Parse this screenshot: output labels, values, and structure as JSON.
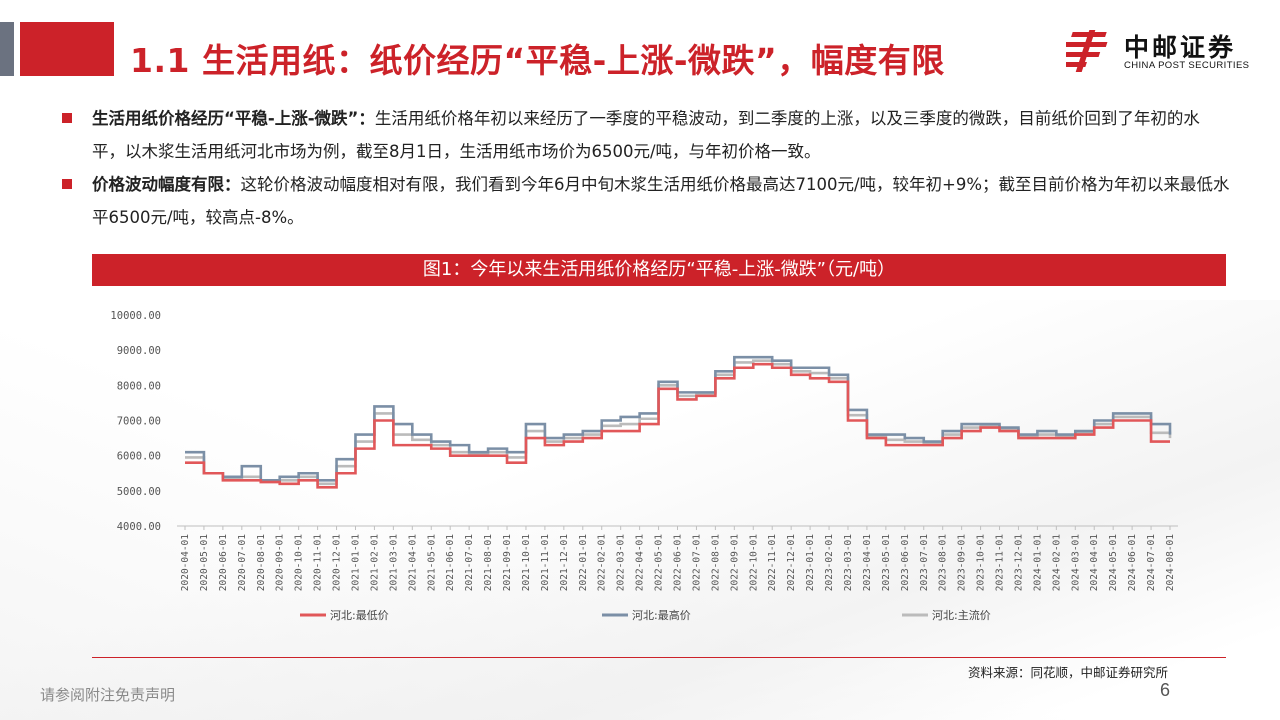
{
  "header": {
    "title": "1.1 生活用纸：纸价经历“平稳-上涨-微跌”，幅度有限",
    "logo_cn": "中邮证券",
    "logo_en": "CHINA POST SECURITIES",
    "accent": "#cc2229"
  },
  "bullets": [
    {
      "bold": "生活用纸价格经历“平稳-上涨-微跌”：",
      "text": "生活用纸价格年初以来经历了一季度的平稳波动，到二季度的上涨，以及三季度的微跌，目前纸价回到了年初的水平，以木浆生活用纸河北市场为例，截至8月1日，生活用纸市场价为6500元/吨，与年初价格一致。"
    },
    {
      "bold": "价格波动幅度有限：",
      "text": "这轮价格波动幅度相对有限，我们看到今年6月中旬木浆生活用纸价格最高达7100元/吨，较年初+9%；截至目前价格为年初以来最低水平6500元/吨，较高点-8%。"
    }
  ],
  "figure": {
    "caption": "图1：今年以来生活用纸价格经历“平稳-上涨-微跌”（元/吨）"
  },
  "chart_data": {
    "type": "line",
    "ylim": [
      4000,
      10000
    ],
    "yticks": [
      "10000.00",
      "9000.00",
      "8000.00",
      "7000.00",
      "6000.00",
      "5000.00",
      "4000.00"
    ],
    "categories": [
      "2020-04-01",
      "2020-05-01",
      "2020-06-01",
      "2020-07-01",
      "2020-08-01",
      "2020-09-01",
      "2020-10-01",
      "2020-11-01",
      "2020-12-01",
      "2021-01-01",
      "2021-02-01",
      "2021-03-01",
      "2021-04-01",
      "2021-05-01",
      "2021-06-01",
      "2021-07-01",
      "2021-08-01",
      "2021-09-01",
      "2021-10-01",
      "2021-11-01",
      "2021-12-01",
      "2022-01-01",
      "2022-02-01",
      "2022-03-01",
      "2022-04-01",
      "2022-05-01",
      "2022-06-01",
      "2022-07-01",
      "2022-08-01",
      "2022-09-01",
      "2022-10-01",
      "2022-11-01",
      "2022-12-01",
      "2023-01-01",
      "2023-02-01",
      "2023-03-01",
      "2023-04-01",
      "2023-05-01",
      "2023-06-01",
      "2023-07-01",
      "2023-08-01",
      "2023-09-01",
      "2023-10-01",
      "2023-11-01",
      "2023-12-01",
      "2024-01-01",
      "2024-02-01",
      "2024-03-01",
      "2024-04-01",
      "2024-05-01",
      "2024-06-01",
      "2024-07-01",
      "2024-08-01"
    ],
    "legend_position": "bottom",
    "series": [
      {
        "name": "河北:最低价",
        "color": "#e15759",
        "values": [
          5800,
          5500,
          5300,
          5300,
          5250,
          5200,
          5300,
          5100,
          5500,
          6200,
          7000,
          6300,
          6300,
          6200,
          6000,
          6000,
          6000,
          5800,
          6500,
          6300,
          6400,
          6500,
          6700,
          6700,
          6900,
          7900,
          7600,
          7700,
          8200,
          8500,
          8600,
          8500,
          8300,
          8200,
          8100,
          7000,
          6500,
          6300,
          6300,
          6300,
          6500,
          6700,
          6800,
          6700,
          6500,
          6500,
          6500,
          6600,
          6800,
          7000,
          7000,
          6400,
          6400
        ]
      },
      {
        "name": "河北:最高价",
        "color": "#7b8fa6",
        "values": [
          6100,
          5500,
          5400,
          5700,
          5300,
          5400,
          5500,
          5300,
          5900,
          6600,
          7400,
          6900,
          6600,
          6400,
          6300,
          6100,
          6200,
          6100,
          6900,
          6500,
          6600,
          6700,
          7000,
          7100,
          7200,
          8100,
          7800,
          7800,
          8400,
          8800,
          8800,
          8700,
          8500,
          8500,
          8300,
          7300,
          6600,
          6600,
          6500,
          6400,
          6700,
          6900,
          6900,
          6800,
          6600,
          6700,
          6600,
          6700,
          7000,
          7200,
          7200,
          6900,
          6600
        ]
      },
      {
        "name": "河北:主流价",
        "color": "#bbbbbb",
        "values": [
          5950,
          5500,
          5350,
          5400,
          5300,
          5300,
          5400,
          5200,
          5700,
          6400,
          7200,
          6600,
          6450,
          6300,
          6100,
          6050,
          6100,
          5950,
          6700,
          6400,
          6500,
          6600,
          6850,
          6900,
          7050,
          8000,
          7700,
          7750,
          8300,
          8650,
          8700,
          8600,
          8400,
          8350,
          8200,
          7150,
          6550,
          6450,
          6400,
          6350,
          6600,
          6800,
          6850,
          6750,
          6550,
          6600,
          6550,
          6650,
          6900,
          7100,
          7100,
          6650,
          6500
        ]
      }
    ]
  },
  "footer": {
    "source": "资料来源：同花顺，中邮证券研究所",
    "disclaimer": "请参阅附注免责声明",
    "page": "6"
  }
}
